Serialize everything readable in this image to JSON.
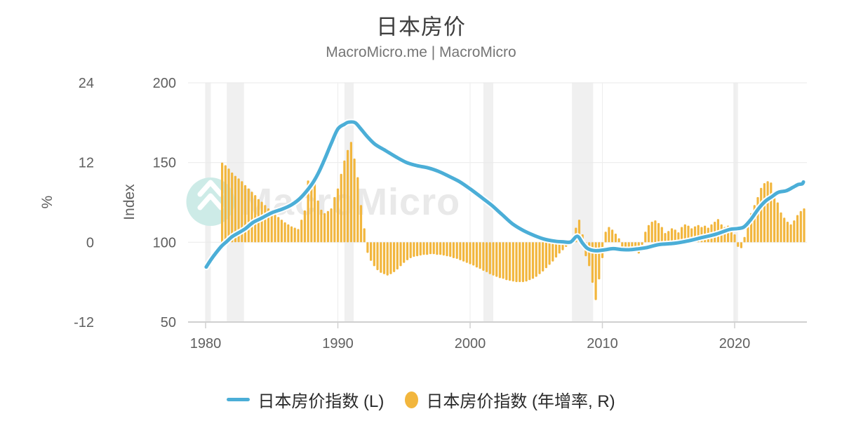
{
  "title": "日本房价",
  "subtitle": "MacroMicro.me | MacroMicro",
  "watermark": {
    "text": "MacroMicro"
  },
  "axes": {
    "percent": {
      "label": "%",
      "ticks": [
        24,
        12,
        0,
        -12
      ]
    },
    "index": {
      "label": "Index",
      "ticks": [
        200,
        150,
        100,
        50
      ]
    },
    "x": {
      "ticks": [
        1980,
        1990,
        2000,
        2010,
        2020
      ]
    }
  },
  "legend": [
    {
      "label": "日本房价指数 (L)",
      "marker": "line",
      "color": "#4BAED7"
    },
    {
      "label": "日本房价指数 (年增率, R)",
      "marker": "oval",
      "color": "#F2B63D"
    }
  ],
  "colors": {
    "line": "#4BAED7",
    "line_halo": "#FFFFFF",
    "bar": "#F2B63D",
    "grid": "#E9E9E9",
    "vgrid": "#EDEDED",
    "axis": "#D0D0D0",
    "tick_text": "#5F5F5F",
    "band": "#F0F0F0",
    "watermark_text": "#E9E9E9",
    "logo_bg": "#CDEBE7",
    "logo_glyph": "#FFFFFF"
  },
  "chart_data": {
    "type": "line+bar",
    "title": "日本房价",
    "x_axis": {
      "range": [
        1978.8,
        2025.5
      ],
      "ticks": [
        1980,
        1990,
        2000,
        2010,
        2020
      ]
    },
    "index_axis": {
      "label": "Index",
      "range": [
        50,
        200
      ],
      "ticks": [
        200,
        150,
        100,
        50
      ],
      "grid": true
    },
    "percent_axis": {
      "label": "%",
      "range": [
        -12,
        24
      ],
      "ticks": [
        24,
        12,
        0,
        -12
      ]
    },
    "legend_position": "bottom",
    "recession_bands": [
      [
        1980.0,
        1980.4
      ],
      [
        1981.6,
        1982.9
      ],
      [
        1990.5,
        1991.2
      ],
      [
        2001.0,
        2001.75
      ],
      [
        2007.7,
        2009.3
      ],
      [
        2019.9,
        2020.25
      ]
    ],
    "series": [
      {
        "name": "日本房价指数 (L)",
        "type": "line",
        "axis": "index",
        "points": [
          [
            1980.05,
            84.5
          ],
          [
            1980.4,
            89
          ],
          [
            1980.8,
            93.5
          ],
          [
            1981.2,
            97.5
          ],
          [
            1981.6,
            100.5
          ],
          [
            1982,
            103.5
          ],
          [
            1982.5,
            106
          ],
          [
            1983,
            108.5
          ],
          [
            1983.6,
            112.5
          ],
          [
            1984.2,
            115
          ],
          [
            1985,
            118.5
          ],
          [
            1985.8,
            120.8
          ],
          [
            1986.5,
            123.5
          ],
          [
            1987.2,
            128
          ],
          [
            1988,
            136
          ],
          [
            1988.5,
            143
          ],
          [
            1989,
            152
          ],
          [
            1989.5,
            162
          ],
          [
            1990,
            171
          ],
          [
            1990.5,
            174
          ],
          [
            1990.8,
            175.3
          ],
          [
            1991.3,
            175
          ],
          [
            1991.7,
            171.5
          ],
          [
            1992.2,
            166.5
          ],
          [
            1992.8,
            161.5
          ],
          [
            1993.6,
            157.5
          ],
          [
            1994.4,
            153.5
          ],
          [
            1995.2,
            150
          ],
          [
            1996,
            148
          ],
          [
            1996.8,
            146.7
          ],
          [
            1997.6,
            144.5
          ],
          [
            1998.4,
            141.4
          ],
          [
            1999.2,
            138
          ],
          [
            2000,
            133.5
          ],
          [
            2000.8,
            128.5
          ],
          [
            2001.6,
            123.4
          ],
          [
            2002.4,
            117.5
          ],
          [
            2003.2,
            111.6
          ],
          [
            2004,
            107.5
          ],
          [
            2004.8,
            104.4
          ],
          [
            2005.6,
            102
          ],
          [
            2006.4,
            100.7
          ],
          [
            2007,
            100.3
          ],
          [
            2007.6,
            100.2
          ],
          [
            2008.1,
            103.8
          ],
          [
            2008.5,
            99.5
          ],
          [
            2008.9,
            96
          ],
          [
            2009.5,
            94.7
          ],
          [
            2010.2,
            95.3
          ],
          [
            2010.8,
            96
          ],
          [
            2011.4,
            95.5
          ],
          [
            2012,
            95.3
          ],
          [
            2012.6,
            95.8
          ],
          [
            2013.3,
            96.6
          ],
          [
            2014.3,
            98.6
          ],
          [
            2015.4,
            99.3
          ],
          [
            2016.4,
            100.7
          ],
          [
            2017.5,
            102.9
          ],
          [
            2018.6,
            105.1
          ],
          [
            2019.6,
            108
          ],
          [
            2020.2,
            108.6
          ],
          [
            2020.7,
            109.6
          ],
          [
            2021.2,
            114
          ],
          [
            2021.8,
            121
          ],
          [
            2022.3,
            125.6
          ],
          [
            2022.8,
            128.5
          ],
          [
            2023.3,
            131.3
          ],
          [
            2023.9,
            132.3
          ],
          [
            2024.4,
            134.4
          ],
          [
            2024.8,
            136.2
          ],
          [
            2025.1,
            136.6
          ],
          [
            2025.2,
            137.8
          ]
        ]
      },
      {
        "name": "日本房价指数 (年增率, R)",
        "type": "bar",
        "axis": "percent",
        "start": 1981.25,
        "step": 0.25,
        "values": [
          12.0,
          11.6,
          11.1,
          10.5,
          10.0,
          9.6,
          9.2,
          8.6,
          8.1,
          7.6,
          7.1,
          6.5,
          6.1,
          5.6,
          5.1,
          4.6,
          4.2,
          3.8,
          3.4,
          3.0,
          2.7,
          2.4,
          2.2,
          2.0,
          3.4,
          4.8,
          9.3,
          8.9,
          9.2,
          6.3,
          4.9,
          4.4,
          4.7,
          5.1,
          6.8,
          8.1,
          10.3,
          12.3,
          13.9,
          15.1,
          12.6,
          9.8,
          5.6,
          2.1,
          -1.6,
          -2.8,
          -3.6,
          -4.2,
          -4.6,
          -4.8,
          -5.0,
          -4.8,
          -4.5,
          -4.1,
          -3.6,
          -3.1,
          -2.7,
          -2.4,
          -2.2,
          -2.1,
          -2.0,
          -1.9,
          -1.9,
          -1.8,
          -1.8,
          -1.9,
          -1.9,
          -2.0,
          -2.1,
          -2.2,
          -2.4,
          -2.5,
          -2.7,
          -2.9,
          -3.1,
          -3.3,
          -3.5,
          -3.8,
          -4.0,
          -4.3,
          -4.5,
          -4.8,
          -5.0,
          -5.2,
          -5.4,
          -5.5,
          -5.7,
          -5.8,
          -5.9,
          -6.0,
          -6.0,
          -6.0,
          -5.9,
          -5.7,
          -5.5,
          -5.2,
          -4.8,
          -4.4,
          -3.9,
          -3.4,
          -2.9,
          -2.3,
          -1.7,
          -1.2,
          -0.7,
          -0.3,
          0.6,
          2.2,
          3.4,
          1.2,
          -2.1,
          -3.6,
          -6.1,
          -8.7,
          -5.6,
          -2.4,
          1.6,
          2.3,
          1.9,
          1.3,
          0.6,
          -0.7,
          -1.3,
          -1.6,
          -1.3,
          -1.5,
          -1.7,
          -0.4,
          1.6,
          2.6,
          3.1,
          3.3,
          2.9,
          2.3,
          1.4,
          1.7,
          2.1,
          1.9,
          1.5,
          2.3,
          2.7,
          2.5,
          2.1,
          2.4,
          2.6,
          2.3,
          2.5,
          2.2,
          2.7,
          3.1,
          3.5,
          2.7,
          2.3,
          2.5,
          2.1,
          1.2,
          -0.7,
          -0.9,
          0.8,
          2.6,
          4.4,
          5.6,
          6.8,
          8.2,
          8.9,
          9.2,
          9.0,
          7.5,
          6.0,
          4.5,
          3.7,
          3.1,
          2.7,
          3.3,
          4.1,
          4.7,
          5.1
        ]
      }
    ]
  }
}
